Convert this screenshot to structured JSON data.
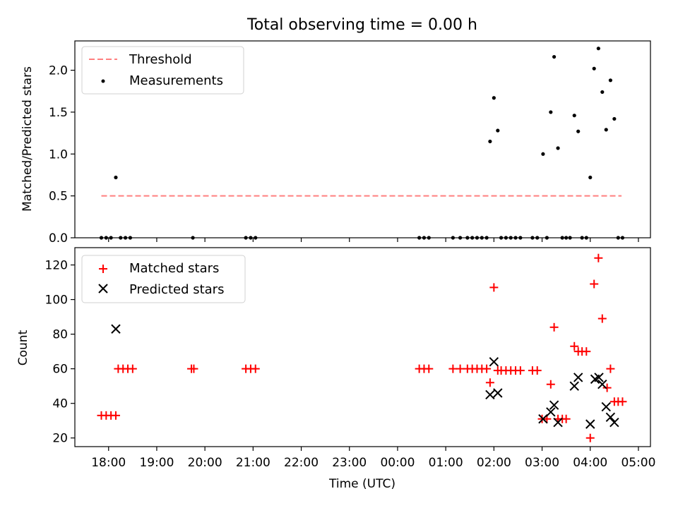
{
  "colors": {
    "threshold": "#ff7f7f",
    "measurement": "#000000",
    "matched": "#ff0000",
    "predicted": "#000000",
    "axes": "#000000"
  },
  "chart_data": [
    {
      "type": "scatter",
      "title": "Total observing time = 0.00 h",
      "xlabel": "",
      "ylabel": "Matched/Predicted stars",
      "xlim": [
        17.3,
        29.25
      ],
      "ylim": [
        0,
        2.35
      ],
      "yticks": [
        "0.0",
        "0.5",
        "1.0",
        "1.5",
        "2.0"
      ],
      "legend": {
        "placement": "upper-left",
        "entries": [
          {
            "label": "Threshold",
            "marker": "dashed-line"
          },
          {
            "label": "Measurements",
            "marker": "dot"
          }
        ]
      },
      "threshold": {
        "x": [
          17.85,
          28.65
        ],
        "y": 0.5
      },
      "series": [
        {
          "name": "Measurements",
          "x": [
            17.85,
            17.95,
            18.05,
            18.15,
            18.25,
            18.35,
            18.45,
            19.75,
            20.85,
            20.95,
            21.05,
            24.45,
            24.55,
            24.65,
            25.15,
            25.3,
            25.45,
            25.55,
            25.65,
            25.75,
            25.85,
            25.92,
            26.0,
            26.08,
            26.15,
            26.25,
            26.35,
            26.45,
            26.55,
            26.8,
            26.9,
            27.02,
            27.1,
            27.18,
            27.25,
            27.33,
            27.42,
            27.5,
            27.58,
            27.67,
            27.75,
            27.83,
            27.92,
            28.0,
            28.08,
            28.17,
            28.25,
            28.33,
            28.42,
            28.5,
            28.58,
            28.67
          ],
          "y": [
            0,
            0,
            0,
            0.72,
            0,
            0,
            0,
            0,
            0,
            0,
            0,
            0,
            0,
            0,
            0,
            0,
            0,
            0,
            0,
            0,
            0,
            1.15,
            1.67,
            1.28,
            0,
            0,
            0,
            0,
            0,
            0,
            0,
            1.0,
            0,
            1.5,
            2.16,
            1.07,
            0,
            0,
            0,
            1.46,
            1.27,
            0,
            0,
            0.72,
            2.02,
            2.26,
            1.74,
            1.29,
            1.88,
            1.42,
            0,
            0
          ]
        }
      ]
    },
    {
      "type": "scatter",
      "title": "",
      "xlabel": "Time (UTC)",
      "ylabel": "Count",
      "xlim": [
        17.3,
        29.25
      ],
      "ylim": [
        15,
        130
      ],
      "yticks": [
        "20",
        "40",
        "60",
        "80",
        "100",
        "120"
      ],
      "xticks": [
        {
          "value": 18,
          "label": "18:00"
        },
        {
          "value": 19,
          "label": "19:00"
        },
        {
          "value": 20,
          "label": "20:00"
        },
        {
          "value": 21,
          "label": "21:00"
        },
        {
          "value": 22,
          "label": "22:00"
        },
        {
          "value": 23,
          "label": "23:00"
        },
        {
          "value": 24,
          "label": "00:00"
        },
        {
          "value": 25,
          "label": "01:00"
        },
        {
          "value": 26,
          "label": "02:00"
        },
        {
          "value": 27,
          "label": "03:00"
        },
        {
          "value": 28,
          "label": "04:00"
        },
        {
          "value": 29,
          "label": "05:00"
        }
      ],
      "legend": {
        "placement": "upper-left",
        "entries": [
          {
            "label": "Matched stars",
            "marker": "plus"
          },
          {
            "label": "Predicted stars",
            "marker": "x"
          }
        ]
      },
      "series": [
        {
          "name": "Matched stars",
          "marker": "plus",
          "x": [
            17.85,
            17.95,
            18.05,
            18.15,
            18.2,
            18.3,
            18.4,
            18.5,
            19.72,
            19.77,
            20.85,
            20.95,
            21.05,
            24.45,
            24.55,
            24.65,
            25.15,
            25.3,
            25.45,
            25.55,
            25.65,
            25.75,
            25.85,
            25.92,
            26.0,
            26.08,
            26.15,
            26.25,
            26.35,
            26.45,
            26.55,
            26.8,
            26.9,
            27.0,
            27.1,
            27.18,
            27.25,
            27.33,
            27.42,
            27.5,
            27.67,
            27.75,
            27.83,
            27.92,
            28.0,
            28.08,
            28.17,
            28.25,
            28.35,
            28.42,
            28.5,
            28.58,
            28.67
          ],
          "y": [
            33,
            33,
            33,
            33,
            60,
            60,
            60,
            60,
            60,
            60,
            60,
            60,
            60,
            60,
            60,
            60,
            60,
            60,
            60,
            60,
            60,
            60,
            60,
            52,
            107,
            59,
            59,
            59,
            59,
            59,
            59,
            59,
            59,
            31,
            31,
            51,
            84,
            31,
            31,
            31,
            73,
            70,
            70,
            70,
            20,
            109,
            124,
            89,
            49,
            60,
            41,
            41,
            41
          ]
        },
        {
          "name": "Predicted stars",
          "marker": "x",
          "x": [
            18.15,
            25.92,
            26.0,
            26.08,
            27.02,
            27.18,
            27.25,
            27.33,
            27.67,
            27.75,
            28.0,
            28.1,
            28.18,
            28.25,
            28.33,
            28.42,
            28.5
          ],
          "y": [
            83,
            45,
            64,
            46,
            31,
            35,
            39,
            29,
            50,
            55,
            28,
            54,
            55,
            51,
            38,
            32,
            29
          ]
        }
      ]
    }
  ]
}
